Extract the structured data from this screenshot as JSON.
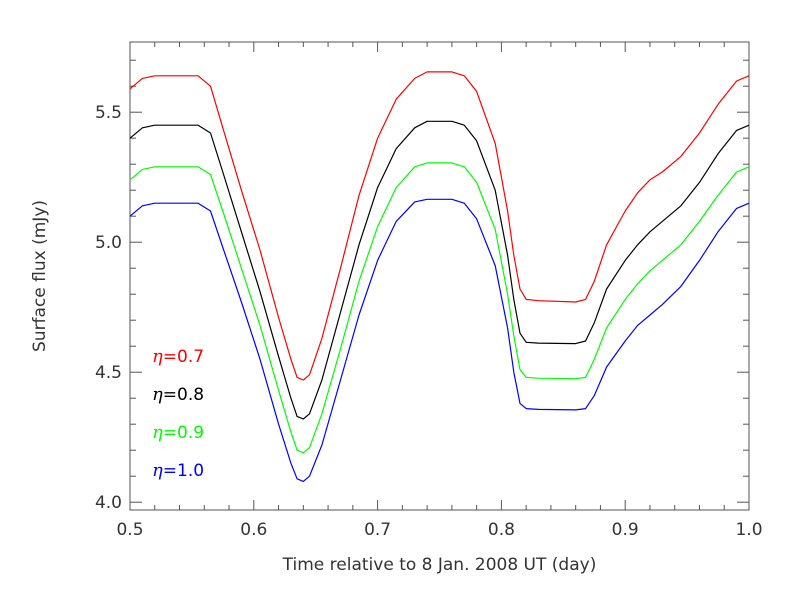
{
  "chart_data": {
    "type": "line",
    "title": "",
    "xlabel": "Time relative to 8 Jan. 2008 UT (day)",
    "ylabel": "Surface flux (mJy)",
    "xlim": [
      0.5,
      1.0
    ],
    "ylim": [
      3.97,
      5.77
    ],
    "xticks": [
      0.5,
      0.6,
      0.7,
      0.8,
      0.9,
      1.0
    ],
    "xtick_labels": [
      "0.5",
      "0.6",
      "0.7",
      "0.8",
      "0.9",
      "1.0"
    ],
    "yticks": [
      4.0,
      4.5,
      5.0,
      5.5
    ],
    "ytick_labels": [
      "4.0",
      "4.5",
      "5.0",
      "5.5"
    ],
    "grid": false,
    "legend_placement": "lower-left",
    "x": [
      0.5,
      0.51,
      0.52,
      0.54,
      0.555,
      0.565,
      0.575,
      0.59,
      0.605,
      0.62,
      0.63,
      0.635,
      0.64,
      0.645,
      0.655,
      0.67,
      0.685,
      0.7,
      0.715,
      0.73,
      0.74,
      0.76,
      0.77,
      0.78,
      0.795,
      0.805,
      0.81,
      0.815,
      0.82,
      0.83,
      0.86,
      0.868,
      0.875,
      0.885,
      0.9,
      0.91,
      0.92,
      0.93,
      0.945,
      0.96,
      0.975,
      0.99,
      1.0
    ],
    "series": [
      {
        "name": "η=0.7",
        "color": "#ff0000",
        "values": [
          5.59,
          5.63,
          5.64,
          5.64,
          5.64,
          5.6,
          5.44,
          5.2,
          4.97,
          4.71,
          4.55,
          4.48,
          4.47,
          4.49,
          4.63,
          4.9,
          5.18,
          5.4,
          5.55,
          5.63,
          5.655,
          5.655,
          5.64,
          5.58,
          5.38,
          5.12,
          4.95,
          4.82,
          4.78,
          4.775,
          4.77,
          4.78,
          4.85,
          4.99,
          5.12,
          5.19,
          5.24,
          5.27,
          5.33,
          5.42,
          5.53,
          5.62,
          5.64
        ]
      },
      {
        "name": "η=0.8",
        "color": "#000000",
        "values": [
          5.4,
          5.44,
          5.45,
          5.45,
          5.45,
          5.42,
          5.27,
          5.04,
          4.81,
          4.56,
          4.4,
          4.33,
          4.32,
          4.34,
          4.47,
          4.73,
          4.99,
          5.21,
          5.36,
          5.44,
          5.465,
          5.465,
          5.45,
          5.39,
          5.2,
          4.95,
          4.78,
          4.65,
          4.615,
          4.612,
          4.61,
          4.62,
          4.69,
          4.82,
          4.93,
          4.99,
          5.04,
          5.08,
          5.14,
          5.23,
          5.34,
          5.43,
          5.45
        ]
      },
      {
        "name": "η=0.9",
        "color": "#00ff00",
        "values": [
          5.24,
          5.28,
          5.29,
          5.29,
          5.29,
          5.26,
          5.12,
          4.9,
          4.68,
          4.43,
          4.27,
          4.2,
          4.19,
          4.21,
          4.34,
          4.59,
          4.85,
          5.06,
          5.21,
          5.29,
          5.305,
          5.305,
          5.29,
          5.23,
          5.05,
          4.8,
          4.64,
          4.51,
          4.48,
          4.477,
          4.475,
          4.48,
          4.55,
          4.67,
          4.78,
          4.84,
          4.89,
          4.93,
          4.99,
          5.08,
          5.18,
          5.27,
          5.29
        ]
      },
      {
        "name": "η=1.0",
        "color": "#0000ff",
        "values": [
          5.1,
          5.14,
          5.15,
          5.15,
          5.15,
          5.12,
          4.98,
          4.77,
          4.55,
          4.3,
          4.15,
          4.09,
          4.08,
          4.1,
          4.22,
          4.47,
          4.72,
          4.93,
          5.08,
          5.155,
          5.165,
          5.165,
          5.15,
          5.09,
          4.91,
          4.67,
          4.5,
          4.38,
          4.36,
          4.357,
          4.355,
          4.36,
          4.41,
          4.52,
          4.62,
          4.68,
          4.72,
          4.76,
          4.83,
          4.93,
          5.04,
          5.13,
          5.15
        ]
      }
    ],
    "legend": [
      {
        "eta": "η",
        "text": "=0.7",
        "color": "#ff0000"
      },
      {
        "eta": "η",
        "text": "=0.8",
        "color": "#000000"
      },
      {
        "eta": "η",
        "text": "=0.9",
        "color": "#00ff00"
      },
      {
        "eta": "η",
        "text": "=1.0",
        "color": "#0000ff"
      }
    ]
  }
}
